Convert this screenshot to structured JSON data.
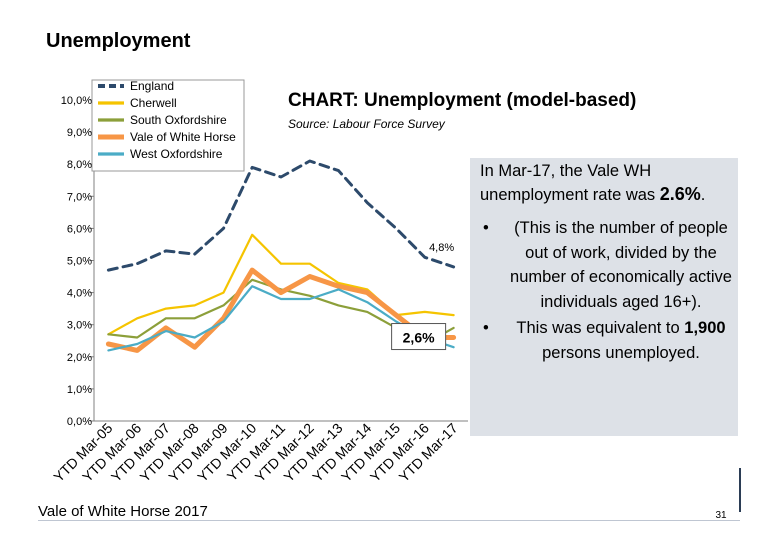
{
  "page": {
    "title": "Unemployment",
    "footer": "Vale of White Horse 2017",
    "page_number": "31"
  },
  "panel": {
    "intro_before": "In Mar-17, the Vale WH unemployment rate was ",
    "intro_value": "2.6%",
    "intro_after": ".",
    "bullet1": "(This is the number of people out of work, divided by the number of economically active individuals aged 16+).",
    "bullet2_before": "This was equivalent to ",
    "bullet2_value": "1,900",
    "bullet2_after": " persons unemployed."
  },
  "chart_data": {
    "type": "line",
    "title": "CHART: Unemployment (model-based)",
    "subtitle": "Source: Labour Force Survey",
    "categories": [
      "YTD Mar-05",
      "YTD Mar-06",
      "YTD Mar-07",
      "YTD Mar-08",
      "YTD Mar-09",
      "YTD Mar-10",
      "YTD Mar-11",
      "YTD Mar-12",
      "YTD Mar-13",
      "YTD Mar-14",
      "YTD Mar-15",
      "YTD Mar-16",
      "YTD Mar-17"
    ],
    "y_ticks": [
      "0,0%",
      "1,0%",
      "2,0%",
      "3,0%",
      "4,0%",
      "5,0%",
      "6,0%",
      "7,0%",
      "8,0%",
      "9,0%",
      "10,0%"
    ],
    "ylim": [
      0,
      10
    ],
    "series": [
      {
        "name": "England",
        "color": "#2d4a6b",
        "dashed": true,
        "width": 3,
        "values": [
          4.7,
          4.9,
          5.3,
          5.2,
          6.0,
          7.9,
          7.6,
          8.1,
          7.8,
          6.8,
          6.0,
          5.1,
          4.8
        ]
      },
      {
        "name": "Cherwell",
        "color": "#f5c400",
        "dashed": false,
        "width": 2.2,
        "values": [
          2.7,
          3.2,
          3.5,
          3.6,
          4.0,
          5.8,
          4.9,
          4.9,
          4.3,
          4.1,
          3.3,
          3.4,
          3.3
        ]
      },
      {
        "name": "South Oxfordshire",
        "color": "#8c9f3a",
        "dashed": false,
        "width": 2.2,
        "values": [
          2.7,
          2.6,
          3.2,
          3.2,
          3.6,
          4.4,
          4.1,
          3.9,
          3.6,
          3.4,
          2.9,
          2.4,
          2.9
        ]
      },
      {
        "name": "Vale of White Horse",
        "color": "#f79646",
        "dashed": false,
        "width": 5,
        "values": [
          2.4,
          2.2,
          2.9,
          2.3,
          3.2,
          4.7,
          4.0,
          4.5,
          4.2,
          4.0,
          3.3,
          2.6,
          2.6
        ]
      },
      {
        "name": "West Oxfordshire",
        "color": "#4bacc6",
        "dashed": false,
        "width": 2.2,
        "values": [
          2.2,
          2.4,
          2.8,
          2.6,
          3.1,
          4.2,
          3.8,
          3.8,
          4.1,
          3.7,
          3.1,
          2.6,
          2.3
        ]
      }
    ],
    "annotations": [
      {
        "label": "4,8%",
        "series": "England",
        "boxed": false
      },
      {
        "label": "2,6%",
        "series": "Vale of White Horse",
        "boxed": true
      }
    ]
  }
}
